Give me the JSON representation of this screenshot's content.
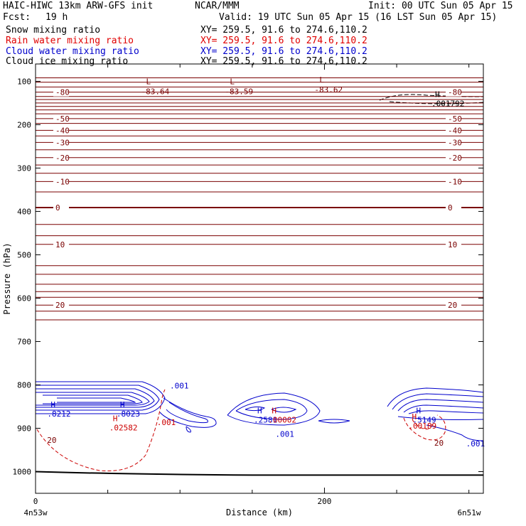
{
  "header": {
    "model": "HAIC-HIWC 13km ARW-GFS init",
    "org": "NCAR/MMM",
    "init": "Init: 00 UTC Sun 05 Apr 15",
    "fcst_label": "Fcst:",
    "fcst_value": "19 h",
    "valid": "Valid: 19 UTC Sun 05 Apr 15 (16 LST Sun 05 Apr 15)"
  },
  "fields": [
    {
      "name": "Snow mixing ratio",
      "xy": "XY= 259.5, 91.6 to 274.6,110.2",
      "color": "#000000"
    },
    {
      "name": "Rain water mixing ratio",
      "xy": "XY= 259.5, 91.6 to 274.6,110.2",
      "color": "#e00000"
    },
    {
      "name": "Cloud water mixing ratio",
      "xy": "XY= 259.5, 91.6 to 274.6,110.2",
      "color": "#0000cc"
    },
    {
      "name": "Cloud ice mixing ratio",
      "xy": "XY= 259.5, 91.6 to 274.6,110.2",
      "color": "#000000"
    }
  ],
  "chart_data": {
    "type": "line",
    "xlabel": "Distance (km)",
    "ylabel": "Pressure (hPa)",
    "xlim": [
      0,
      310
    ],
    "ylim": [
      1050,
      60
    ],
    "x_ticks": [
      0,
      200
    ],
    "y_ticks": [
      100,
      200,
      300,
      400,
      500,
      600,
      700,
      800,
      900,
      1000
    ],
    "x_endpoint_labels": [
      "4n53w",
      "6n51w"
    ],
    "temperature_isotherms": {
      "color": "#7a0000",
      "series": [
        {
          "name": "-80",
          "p": 125
        },
        {
          "name": "-50",
          "p": 186
        },
        {
          "name": "-40",
          "p": 213
        },
        {
          "name": "-30",
          "p": 241
        },
        {
          "name": "-20",
          "p": 276
        },
        {
          "name": "-10",
          "p": 331
        },
        {
          "name": "0",
          "p": 391
        },
        {
          "name": "10",
          "p": 476
        },
        {
          "name": "20",
          "p": 616
        }
      ],
      "unlabeled_p": [
        92,
        102,
        113,
        135,
        142,
        150,
        158,
        166,
        175,
        197,
        226,
        258,
        293,
        312,
        355,
        430,
        456,
        525,
        545,
        568,
        585,
        598,
        630,
        650
      ]
    },
    "lows": [
      {
        "label": "L",
        "value": "-83.64",
        "x": 78,
        "p": 113
      },
      {
        "label": "L",
        "value": "-83.59",
        "x": 136,
        "p": 113
      },
      {
        "label": "L",
        "value": "-83.62",
        "x": 198,
        "p": 109
      }
    ],
    "highs": [
      {
        "label": "H",
        "value": ".001792",
        "x": 278,
        "p": 143,
        "color": "#000000"
      },
      {
        "label": "H",
        "value": ".8212",
        "x": 12,
        "p": 858,
        "color": "#0000cc"
      },
      {
        "label": "H",
        "value": ".8023",
        "x": 60,
        "p": 858,
        "color": "#0000cc"
      },
      {
        "label": "H",
        "value": ".02582",
        "x": 55,
        "p": 890,
        "color": "#cc0000"
      },
      {
        "label": "H",
        "value": ".2581",
        "x": 155,
        "p": 872,
        "color": "#0000cc"
      },
      {
        "label": "H",
        "value": ".00002",
        "x": 165,
        "p": 872,
        "color": "#cc0000"
      },
      {
        "label": "H",
        "value": ".5149",
        "x": 265,
        "p": 872,
        "color": "#0000cc"
      },
      {
        "label": "H",
        "value": ".00189",
        "x": 262,
        "p": 886,
        "color": "#cc0000"
      }
    ],
    "annotations": [
      {
        "text": ".001",
        "x": 93,
        "p": 808,
        "color": "#0000cc"
      },
      {
        "text": ".001",
        "x": 84,
        "p": 893,
        "color": "#cc0000"
      },
      {
        "text": ".001",
        "x": 166,
        "p": 920,
        "color": "#0000cc"
      },
      {
        "text": ".001",
        "x": 298,
        "p": 942,
        "color": "#0000cc"
      },
      {
        "text": "20",
        "x": 8,
        "p": 934,
        "color": "#7a0000"
      },
      {
        "text": "20",
        "x": 276,
        "p": 940,
        "color": "#7a0000"
      }
    ]
  }
}
